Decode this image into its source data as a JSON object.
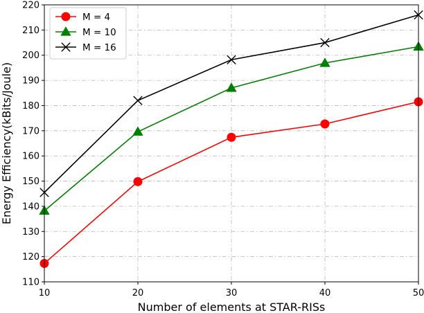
{
  "chart_data": {
    "type": "line",
    "title": "",
    "xlabel": "Number of elements at STAR-RISs",
    "ylabel": "Energy Efficiency(kBits/Joule)",
    "x": [
      10,
      20,
      30,
      40,
      50
    ],
    "xlim": [
      10,
      50
    ],
    "ylim": [
      110,
      220
    ],
    "xticks": [
      "10",
      "20",
      "30",
      "40",
      "50"
    ],
    "yticks": [
      "110",
      "120",
      "130",
      "140",
      "150",
      "160",
      "170",
      "180",
      "190",
      "200",
      "210",
      "220"
    ],
    "grid": true,
    "legend_position": "top-left",
    "series": [
      {
        "name": "M = 4",
        "color": "#ff0000",
        "marker": "circle",
        "values": [
          117.3,
          149.8,
          167.4,
          172.7,
          181.5
        ]
      },
      {
        "name": "M = 10",
        "color": "#008000",
        "marker": "triangle",
        "values": [
          138.2,
          169.6,
          187.0,
          196.9,
          203.4
        ]
      },
      {
        "name": "M = 16",
        "color": "#000000",
        "marker": "x",
        "values": [
          145.5,
          182.0,
          198.2,
          205.0,
          216.0
        ]
      }
    ]
  }
}
